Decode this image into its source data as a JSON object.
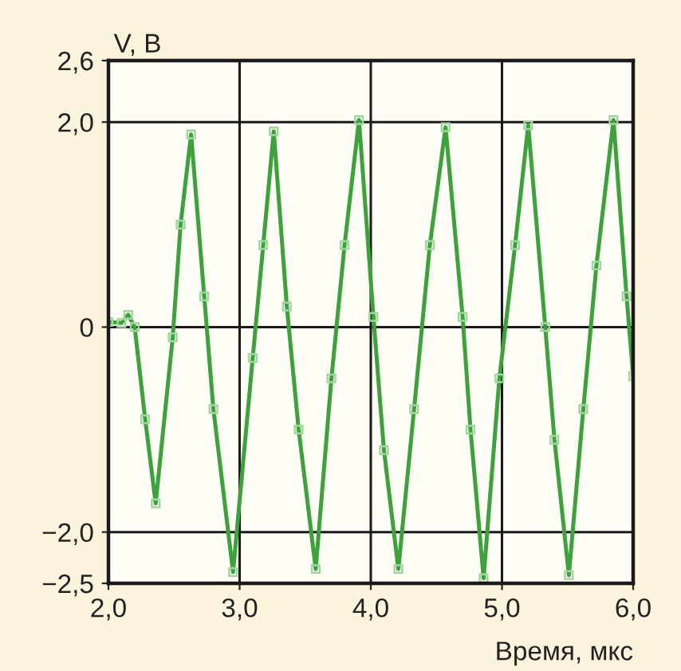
{
  "chart_data": {
    "type": "line",
    "ylabel": "V, В",
    "xlabel": "Время, мкс",
    "xlim": [
      2.0,
      6.0
    ],
    "ylim": [
      -2.5,
      2.6
    ],
    "xticks": [
      {
        "value": 2.0,
        "label": "2,0"
      },
      {
        "value": 3.0,
        "label": "3,0"
      },
      {
        "value": 4.0,
        "label": "4,0"
      },
      {
        "value": 5.0,
        "label": "5,0"
      },
      {
        "value": 6.0,
        "label": "6,0"
      }
    ],
    "yticks": [
      {
        "value": -2.5,
        "label": "−2,5"
      },
      {
        "value": -2.0,
        "label": "−2,0"
      },
      0,
      {
        "value": 2.0,
        "label": "2,0"
      },
      {
        "value": 2.6,
        "label": "2,6"
      }
    ],
    "grid": true,
    "marker": "square",
    "line_style": "solid",
    "series": [
      {
        "color": "#3aa33a",
        "x": [
          2.0,
          2.1,
          2.15,
          2.2,
          2.28,
          2.36,
          2.49,
          2.55,
          2.63,
          2.73,
          2.8,
          2.95,
          3.1,
          3.18,
          3.26,
          3.36,
          3.45,
          3.58,
          3.7,
          3.8,
          3.91,
          4.02,
          4.1,
          4.21,
          4.33,
          4.45,
          4.57,
          4.7,
          4.76,
          4.86,
          4.98,
          5.1,
          5.2,
          5.33,
          5.4,
          5.51,
          5.62,
          5.72,
          5.85,
          5.95,
          6.0
        ],
        "values": [
          0.05,
          0.04,
          0.12,
          0.0,
          -0.9,
          -1.72,
          -0.1,
          1.0,
          1.88,
          0.3,
          -0.8,
          -2.39,
          -0.3,
          0.8,
          1.91,
          0.2,
          -1.0,
          -2.36,
          -0.5,
          0.8,
          2.02,
          0.1,
          -1.2,
          -2.36,
          -0.8,
          0.8,
          1.95,
          0.1,
          -1.0,
          -2.45,
          -0.5,
          0.8,
          1.97,
          0.0,
          -1.1,
          -2.42,
          -0.8,
          0.6,
          2.02,
          0.3,
          -0.48
        ]
      }
    ]
  }
}
